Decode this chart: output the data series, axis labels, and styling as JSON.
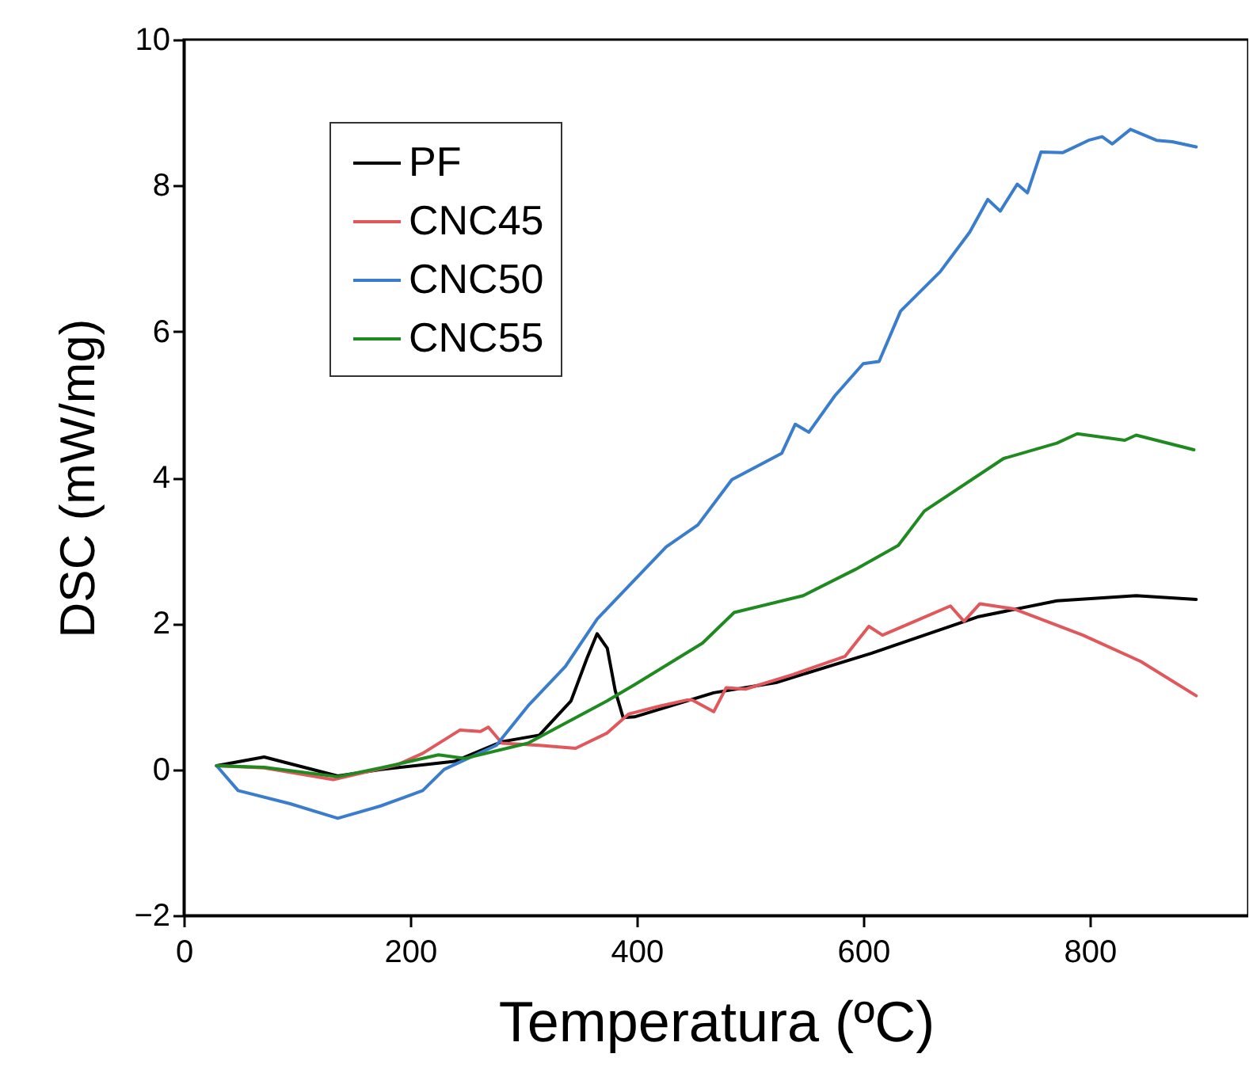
{
  "chart_data": {
    "type": "line",
    "xlabel": "Temperatura (ºC)",
    "ylabel": "DSC (mW/mg)",
    "xlim": [
      0,
      940
    ],
    "ylim": [
      -2,
      10
    ],
    "xticks": [
      0,
      200,
      400,
      600,
      800
    ],
    "yticks": [
      -2,
      0,
      2,
      4,
      6,
      8,
      10
    ],
    "grid": false,
    "legend": "top left",
    "line_style": "solid",
    "marker": "none",
    "series": [
      {
        "name": "PF",
        "color": "#000000",
        "x": [
          29,
          71,
          136,
          174,
          239,
          281,
          314,
          342,
          356,
          365,
          374,
          381,
          388,
          398,
          468,
          523,
          607,
          701,
          771,
          841,
          894
        ],
        "values": [
          0.05,
          0.17,
          -0.09,
          0,
          0.11,
          0.38,
          0.47,
          0.94,
          1.52,
          1.86,
          1.66,
          1.08,
          0.71,
          0.72,
          1.05,
          1.19,
          1.59,
          2.09,
          2.31,
          2.38,
          2.33
        ]
      },
      {
        "name": "CNC45",
        "color": "#e0585c",
        "x": [
          29,
          71,
          132,
          188,
          211,
          244,
          262,
          269,
          281,
          314,
          346,
          374,
          393,
          421,
          444,
          449,
          468,
          479,
          496,
          538,
          584,
          605,
          617,
          650,
          677,
          689,
          703,
          733,
          794,
          845,
          894
        ],
        "values": [
          0.05,
          0.02,
          -0.14,
          0.06,
          0.22,
          0.54,
          0.52,
          0.58,
          0.36,
          0.33,
          0.29,
          0.5,
          0.76,
          0.87,
          0.95,
          0.95,
          0.79,
          1.12,
          1.1,
          1.3,
          1.55,
          1.96,
          1.84,
          2.06,
          2.24,
          2.03,
          2.27,
          2.2,
          1.84,
          1.48,
          1.01
        ]
      },
      {
        "name": "CNC50",
        "color": "#3a7dcc",
        "x": [
          29,
          48,
          94,
          136,
          174,
          211,
          230,
          276,
          304,
          337,
          365,
          426,
          454,
          484,
          528,
          540,
          552,
          575,
          600,
          614,
          633,
          668,
          694,
          710,
          721,
          736,
          745,
          757,
          776,
          799,
          811,
          820,
          836,
          859,
          873,
          894
        ],
        "values": [
          0.05,
          -0.29,
          -0.47,
          -0.67,
          -0.5,
          -0.29,
          0,
          0.33,
          0.87,
          1.41,
          2.06,
          3.05,
          3.35,
          3.97,
          4.33,
          4.73,
          4.62,
          5.12,
          5.56,
          5.59,
          6.28,
          6.82,
          7.36,
          7.81,
          7.65,
          8.02,
          7.9,
          8.46,
          8.45,
          8.62,
          8.67,
          8.57,
          8.77,
          8.62,
          8.6,
          8.53
        ]
      },
      {
        "name": "CNC55",
        "color": "#1f8a1f",
        "x": [
          29,
          71,
          136,
          174,
          225,
          248,
          304,
          374,
          398,
          458,
          486,
          547,
          593,
          631,
          654,
          724,
          771,
          789,
          831,
          841,
          892
        ],
        "values": [
          0.05,
          0.03,
          -0.1,
          0.02,
          0.2,
          0.15,
          0.36,
          0.94,
          1.16,
          1.73,
          2.15,
          2.38,
          2.74,
          3.07,
          3.54,
          4.26,
          4.47,
          4.6,
          4.51,
          4.58,
          4.38
        ]
      }
    ]
  }
}
